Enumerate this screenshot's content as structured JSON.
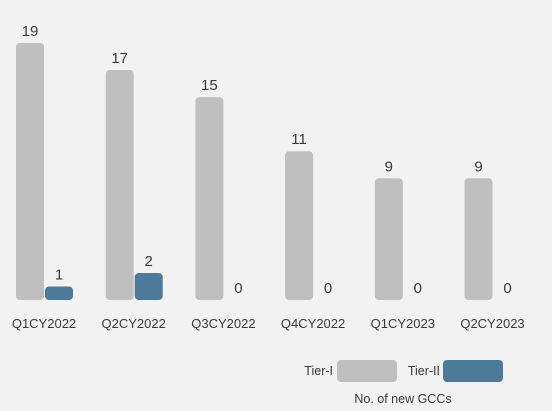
{
  "chart_data": {
    "type": "bar",
    "categories": [
      "Q1CY2022",
      "Q2CY2022",
      "Q3CY2022",
      "Q4CY2022",
      "Q1CY2023",
      "Q2CY2023"
    ],
    "series": [
      {
        "name": "Tier-I",
        "values": [
          19,
          17,
          15,
          11,
          9,
          9
        ],
        "color": "#bfbfbf"
      },
      {
        "name": "Tier-II",
        "values": [
          1,
          2,
          0,
          0,
          0,
          0
        ],
        "color": "#4e7a99"
      }
    ],
    "title": "",
    "xlabel": "",
    "ylabel": "",
    "ylim": [
      0,
      19
    ],
    "grid": false,
    "legend_position": "bottom-right",
    "legend_caption": "No. of new GCCs"
  }
}
